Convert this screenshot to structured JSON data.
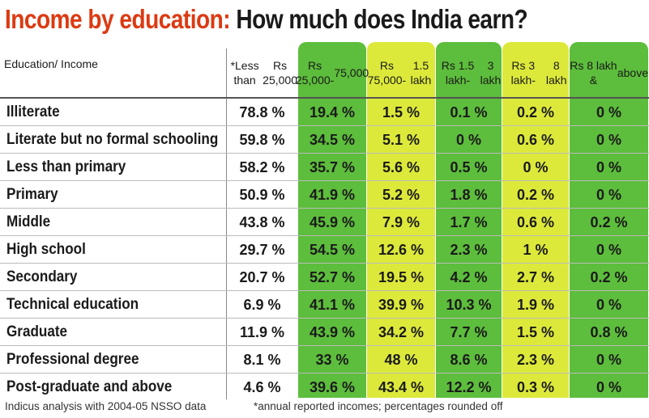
{
  "title": {
    "part1": "Income by education:",
    "part2": " How much does India earn?"
  },
  "colors": {
    "title_accent": "#dc3a12",
    "green": "#5dbd3c",
    "yellow": "#dde93a"
  },
  "chart_data": {
    "type": "table",
    "title": "Income by education: How much does India earn?",
    "row_header": "Education/ Income",
    "columns": [
      {
        "label": "*Less than Rs 25,000",
        "line1": "*Less than",
        "line2": "Rs 25,000"
      },
      {
        "label": "Rs 25,000-75,000",
        "line1": "Rs 25,000-",
        "line2": "75,000"
      },
      {
        "label": "Rs 75,000-1.5 lakh",
        "line1": "Rs 75,000-",
        "line2": "1.5 lakh"
      },
      {
        "label": "Rs 1.5 lakh-3 lakh",
        "line1": "Rs 1.5 lakh-",
        "line2": "3 lakh"
      },
      {
        "label": "Rs 3 lakh-8 lakh",
        "line1": "Rs 3 lakh-",
        "line2": "8 lakh"
      },
      {
        "label": "Rs 8 lakh & above",
        "line1": "Rs 8 lakh &",
        "line2": "above"
      }
    ],
    "rows": [
      {
        "label": "Illiterate",
        "values": [
          "78.8 %",
          "19.4 %",
          "1.5 %",
          "0.1 %",
          "0.2 %",
          "0 %"
        ]
      },
      {
        "label": "Literate but no formal schooling",
        "values": [
          "59.8 %",
          "34.5 %",
          "5.1 %",
          "0 %",
          "0.6 %",
          "0 %"
        ]
      },
      {
        "label": "Less than primary",
        "values": [
          "58.2 %",
          "35.7 %",
          "5.6 %",
          "0.5 %",
          "0 %",
          "0 %"
        ]
      },
      {
        "label": "Primary",
        "values": [
          "50.9 %",
          "41.9 %",
          "5.2 %",
          "1.8 %",
          "0.2 %",
          "0 %"
        ]
      },
      {
        "label": "Middle",
        "values": [
          "43.8 %",
          "45.9 %",
          "7.9 %",
          "1.7 %",
          "0.6 %",
          "0.2 %"
        ]
      },
      {
        "label": "High school",
        "values": [
          "29.7 %",
          "54.5 %",
          "12.6 %",
          "2.3 %",
          "1 %",
          "0 %"
        ]
      },
      {
        "label": "Secondary",
        "values": [
          "20.7 %",
          "52.7 %",
          "19.5 %",
          "4.2 %",
          "2.7 %",
          "0.2 %"
        ]
      },
      {
        "label": "Technical education",
        "values": [
          "6.9 %",
          "41.1 %",
          "39.9 %",
          "10.3 %",
          "1.9 %",
          "0 %"
        ]
      },
      {
        "label": "Graduate",
        "values": [
          "11.9 %",
          "43.9 %",
          "34.2 %",
          "7.7 %",
          "1.5 %",
          "0.8 %"
        ]
      },
      {
        "label": "Professional degree",
        "values": [
          "8.1 %",
          "33 %",
          "48 %",
          "8.6 %",
          "2.3 %",
          "0 %"
        ]
      },
      {
        "label": "Post-graduate and above",
        "values": [
          "4.6 %",
          "39.6 %",
          "43.4 %",
          "12.2 %",
          "0.3 %",
          "0 %"
        ]
      }
    ]
  },
  "footer": {
    "source": "Indicus analysis with 2004-05 NSSO data",
    "note": "*annual reported incomes; percentages rounded off"
  }
}
